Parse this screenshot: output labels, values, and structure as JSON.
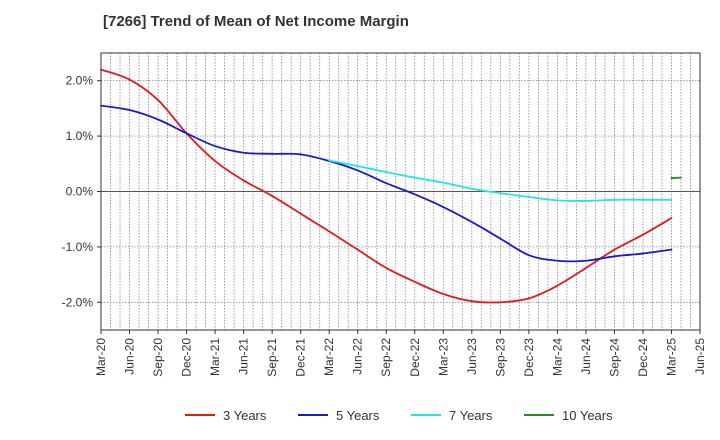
{
  "chart_data": {
    "type": "line",
    "title": "[7266]  Trend of Mean of Net Income Margin",
    "xlabel": "",
    "ylabel": "",
    "x_ticks": [
      "Mar-20",
      "Jun-20",
      "Sep-20",
      "Dec-20",
      "Mar-21",
      "Jun-21",
      "Sep-21",
      "Dec-21",
      "Mar-22",
      "Jun-22",
      "Sep-22",
      "Dec-22",
      "Mar-23",
      "Jun-23",
      "Sep-23",
      "Dec-23",
      "Mar-24",
      "Jun-24",
      "Sep-24",
      "Dec-24",
      "Mar-25",
      "Jun-25"
    ],
    "y_ticks": [
      {
        "value": 2.0,
        "label": "2.0%"
      },
      {
        "value": 1.0,
        "label": "1.0%"
      },
      {
        "value": 0.0,
        "label": "0.0%"
      },
      {
        "value": -1.0,
        "label": "-1.0%"
      },
      {
        "value": -2.0,
        "label": "-2.0%"
      }
    ],
    "ylim": [
      -2.5,
      2.5
    ],
    "grid": true,
    "legend_position": "bottom",
    "series": [
      {
        "name": "3 Years",
        "color": "#e31a1c",
        "points": [
          [
            "Mar-20",
            2.2
          ],
          [
            "Jun-20",
            2.02
          ],
          [
            "Sep-20",
            1.65
          ],
          [
            "Dec-20",
            1.05
          ],
          [
            "Mar-21",
            0.55
          ],
          [
            "Jun-21",
            0.2
          ],
          [
            "Sep-21",
            -0.08
          ],
          [
            "Dec-21",
            -0.4
          ],
          [
            "Mar-22",
            -0.72
          ],
          [
            "Jun-22",
            -1.05
          ],
          [
            "Sep-22",
            -1.38
          ],
          [
            "Dec-22",
            -1.63
          ],
          [
            "Mar-23",
            -1.85
          ],
          [
            "Jun-23",
            -1.98
          ],
          [
            "Sep-23",
            -2.0
          ],
          [
            "Dec-23",
            -1.93
          ],
          [
            "Mar-24",
            -1.7
          ],
          [
            "Jun-24",
            -1.38
          ],
          [
            "Sep-24",
            -1.05
          ],
          [
            "Dec-24",
            -0.78
          ],
          [
            "Mar-25",
            -0.48
          ]
        ]
      },
      {
        "name": "5 Years",
        "color": "#1a1acd",
        "points": [
          [
            "Mar-20",
            1.55
          ],
          [
            "Jun-20",
            1.47
          ],
          [
            "Sep-20",
            1.3
          ],
          [
            "Dec-20",
            1.05
          ],
          [
            "Mar-21",
            0.82
          ],
          [
            "Jun-21",
            0.7
          ],
          [
            "Sep-21",
            0.68
          ],
          [
            "Dec-21",
            0.67
          ],
          [
            "Mar-22",
            0.55
          ],
          [
            "Jun-22",
            0.38
          ],
          [
            "Sep-22",
            0.15
          ],
          [
            "Dec-22",
            -0.05
          ],
          [
            "Mar-23",
            -0.28
          ],
          [
            "Jun-23",
            -0.55
          ],
          [
            "Sep-23",
            -0.85
          ],
          [
            "Dec-23",
            -1.15
          ],
          [
            "Mar-24",
            -1.25
          ],
          [
            "Jun-24",
            -1.25
          ],
          [
            "Sep-24",
            -1.17
          ],
          [
            "Dec-24",
            -1.12
          ],
          [
            "Mar-25",
            -1.05
          ]
        ]
      },
      {
        "name": "7 Years",
        "color": "#22e5e5",
        "points": [
          [
            "Mar-22",
            0.56
          ],
          [
            "Jun-22",
            0.46
          ],
          [
            "Sep-22",
            0.35
          ],
          [
            "Dec-22",
            0.25
          ],
          [
            "Mar-23",
            0.16
          ],
          [
            "Jun-23",
            0.05
          ],
          [
            "Sep-23",
            -0.03
          ],
          [
            "Dec-23",
            -0.1
          ],
          [
            "Mar-24",
            -0.16
          ],
          [
            "Jun-24",
            -0.17
          ],
          [
            "Sep-24",
            -0.15
          ],
          [
            "Dec-24",
            -0.15
          ],
          [
            "Mar-25",
            -0.15
          ]
        ]
      },
      {
        "name": "10 Years",
        "color": "#2a8a2a",
        "points": [
          [
            "Mar-25",
            0.24
          ],
          [
            "Apr-25",
            0.25
          ]
        ]
      }
    ]
  }
}
